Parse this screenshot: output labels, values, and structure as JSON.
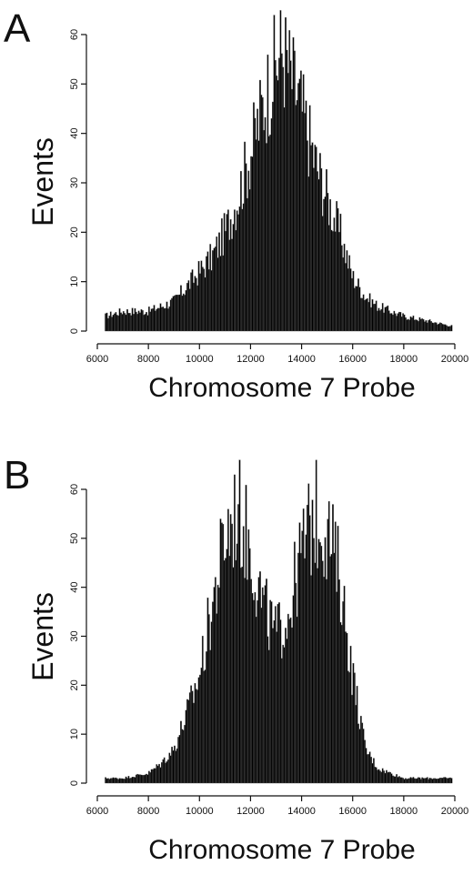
{
  "chart_data": [
    {
      "type": "bar",
      "panel_label": "A",
      "xlabel": "Chromosome 7 Probe",
      "ylabel": "Events",
      "xlim": [
        6000,
        20000
      ],
      "ylim": [
        0,
        60
      ],
      "x_ticks": [
        6000,
        8000,
        10000,
        12000,
        14000,
        16000,
        18000,
        20000
      ],
      "y_ticks": [
        0,
        10,
        20,
        30,
        40,
        50,
        60
      ],
      "bin_width": 50,
      "distribution": "unimodal",
      "control_points": [
        [
          6300,
          3
        ],
        [
          7000,
          4
        ],
        [
          8000,
          4
        ],
        [
          9000,
          6
        ],
        [
          10000,
          12
        ],
        [
          10500,
          15
        ],
        [
          11000,
          20
        ],
        [
          11500,
          27
        ],
        [
          12000,
          36
        ],
        [
          12500,
          46
        ],
        [
          13000,
          54
        ],
        [
          13250,
          57
        ],
        [
          13500,
          53
        ],
        [
          14000,
          45
        ],
        [
          14500,
          35
        ],
        [
          15000,
          27
        ],
        [
          15500,
          20
        ],
        [
          16000,
          11
        ],
        [
          16500,
          7
        ],
        [
          17000,
          5
        ],
        [
          18000,
          3
        ],
        [
          19000,
          2
        ],
        [
          19900,
          1
        ]
      ],
      "grid": false,
      "legend": "none"
    },
    {
      "type": "bar",
      "panel_label": "B",
      "xlabel": "Chromosome 7 Probe",
      "ylabel": "Events",
      "xlim": [
        6000,
        20000
      ],
      "ylim": [
        0,
        60
      ],
      "x_ticks": [
        6000,
        8000,
        10000,
        12000,
        14000,
        16000,
        18000,
        20000
      ],
      "y_ticks": [
        0,
        10,
        20,
        30,
        40,
        50,
        60
      ],
      "bin_width": 50,
      "distribution": "bimodal",
      "control_points": [
        [
          6300,
          1
        ],
        [
          7000,
          1
        ],
        [
          8000,
          2
        ],
        [
          8500,
          4
        ],
        [
          9000,
          7
        ],
        [
          9500,
          14
        ],
        [
          10000,
          22
        ],
        [
          10500,
          36
        ],
        [
          11000,
          50
        ],
        [
          11500,
          56
        ],
        [
          12000,
          48
        ],
        [
          12500,
          36
        ],
        [
          13000,
          30
        ],
        [
          13500,
          35
        ],
        [
          14000,
          47
        ],
        [
          14500,
          55
        ],
        [
          15000,
          52
        ],
        [
          15500,
          42
        ],
        [
          16000,
          22
        ],
        [
          16500,
          7
        ],
        [
          17000,
          3
        ],
        [
          18000,
          1
        ],
        [
          19000,
          1
        ],
        [
          19900,
          1
        ]
      ],
      "grid": false,
      "legend": "none"
    }
  ]
}
